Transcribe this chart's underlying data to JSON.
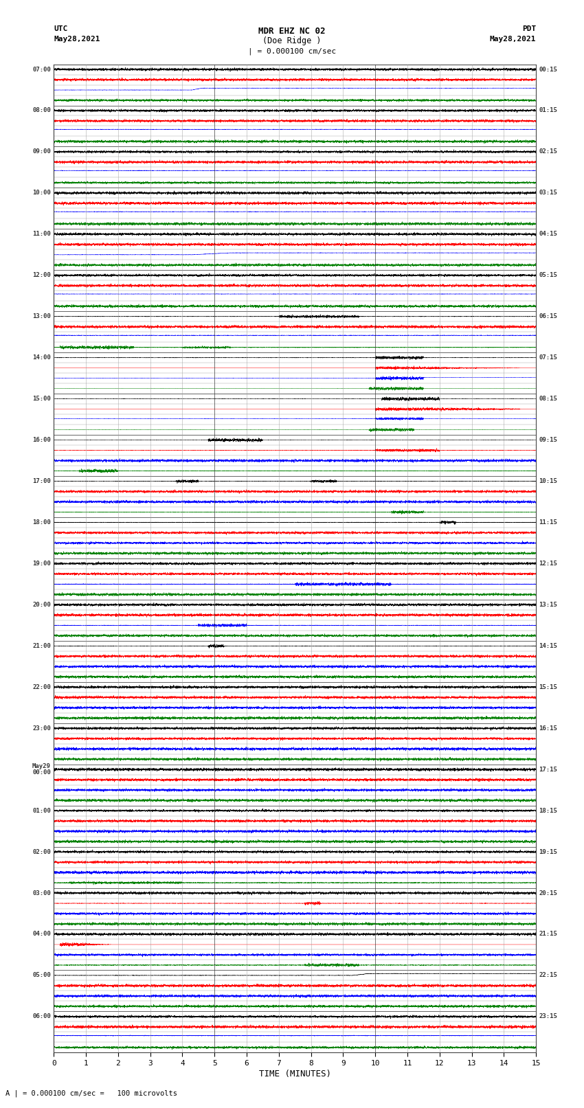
{
  "title_line1": "MDR EHZ NC 02",
  "title_line2": "(Doe Ridge )",
  "scale_label": "| = 0.000100 cm/sec",
  "utc_label": "UTC",
  "utc_date": "May28,2021",
  "pdt_label": "PDT",
  "pdt_date": "May28,2021",
  "xlabel": "TIME (MINUTES)",
  "bottom_note": "A | = 0.000100 cm/sec =   100 microvolts",
  "xlim": [
    0,
    15
  ],
  "xticks": [
    0,
    1,
    2,
    3,
    4,
    5,
    6,
    7,
    8,
    9,
    10,
    11,
    12,
    13,
    14,
    15
  ],
  "bg_color": "#ffffff",
  "fig_width": 8.5,
  "fig_height": 16.13,
  "num_hours": 24,
  "start_hour": 7,
  "traces_per_hour": 4,
  "trace_colors": [
    "black",
    "red",
    "blue",
    "green"
  ],
  "row_labels_utc": [
    "07:00",
    "",
    "",
    "",
    "08:00",
    "",
    "",
    "",
    "09:00",
    "",
    "",
    "",
    "10:00",
    "",
    "",
    "",
    "11:00",
    "",
    "",
    "",
    "12:00",
    "",
    "",
    "",
    "13:00",
    "",
    "",
    "",
    "14:00",
    "",
    "",
    "",
    "15:00",
    "",
    "",
    "",
    "16:00",
    "",
    "",
    "",
    "17:00",
    "",
    "",
    "",
    "18:00",
    "",
    "",
    "",
    "19:00",
    "",
    "",
    "",
    "20:00",
    "",
    "",
    "",
    "21:00",
    "",
    "",
    "",
    "22:00",
    "",
    "",
    "",
    "23:00",
    "",
    "",
    "",
    "May29\n00:00",
    "",
    "",
    "",
    "01:00",
    "",
    "",
    "",
    "02:00",
    "",
    "",
    "",
    "03:00",
    "",
    "",
    "",
    "04:00",
    "",
    "",
    "",
    "05:00",
    "",
    "",
    "",
    "06:00",
    "",
    "",
    ""
  ],
  "row_labels_pdt": [
    "00:15",
    "",
    "",
    "",
    "01:15",
    "",
    "",
    "",
    "02:15",
    "",
    "",
    "",
    "03:15",
    "",
    "",
    "",
    "04:15",
    "",
    "",
    "",
    "05:15",
    "",
    "",
    "",
    "06:15",
    "",
    "",
    "",
    "07:15",
    "",
    "",
    "",
    "08:15",
    "",
    "",
    "",
    "09:15",
    "",
    "",
    "",
    "10:15",
    "",
    "",
    "",
    "11:15",
    "",
    "",
    "",
    "12:15",
    "",
    "",
    "",
    "13:15",
    "",
    "",
    "",
    "14:15",
    "",
    "",
    "",
    "15:15",
    "",
    "",
    "",
    "16:15",
    "",
    "",
    "",
    "17:15",
    "",
    "",
    "",
    "18:15",
    "",
    "",
    "",
    "19:15",
    "",
    "",
    "",
    "20:15",
    "",
    "",
    "",
    "21:15",
    "",
    "",
    "",
    "22:15",
    "",
    "",
    "",
    "23:15",
    "",
    "",
    ""
  ]
}
